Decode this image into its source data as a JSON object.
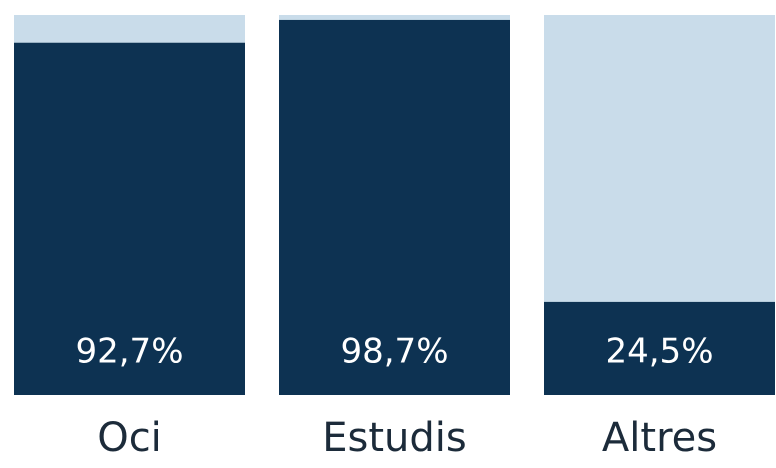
{
  "chart_data": {
    "type": "bar",
    "categories": [
      "Oci",
      "Estudis",
      "Altres"
    ],
    "values": [
      92.7,
      98.7,
      24.5
    ],
    "value_labels": [
      "92,7%",
      "98,7%",
      "24,5%"
    ],
    "color": "#0d3252",
    "background_color": "#c9dcea",
    "ylim": [
      0,
      100
    ]
  }
}
